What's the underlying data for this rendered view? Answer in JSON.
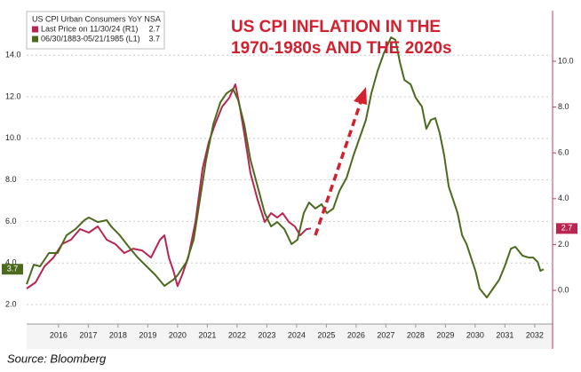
{
  "chart_data": {
    "type": "line",
    "title": [
      "US CPI INFLATION IN THE",
      "1970-1980s AND THE 2020s"
    ],
    "legend_title": "US CPI Urban Consumers YoY NSA",
    "source": "Source: Bloomberg",
    "xlim": [
      2015.43,
      2033.1
    ],
    "xticks": [
      {
        "value": 2016.5,
        "label": "2016"
      },
      {
        "value": 2017.5,
        "label": "2017"
      },
      {
        "value": 2018.5,
        "label": "2018"
      },
      {
        "value": 2019.5,
        "label": "2019"
      },
      {
        "value": 2020.5,
        "label": "2020"
      },
      {
        "value": 2021.5,
        "label": "2021"
      },
      {
        "value": 2022.5,
        "label": "2022"
      },
      {
        "value": 2023.5,
        "label": "2023"
      },
      {
        "value": 2024.5,
        "label": "2024"
      },
      {
        "value": 2025.5,
        "label": "2025"
      },
      {
        "value": 2026.5,
        "label": "2026"
      },
      {
        "value": 2027.5,
        "label": "2027"
      },
      {
        "value": 2028.5,
        "label": "2028"
      },
      {
        "value": 2029.5,
        "label": "2029"
      },
      {
        "value": 2030.5,
        "label": "2030"
      },
      {
        "value": 2031.5,
        "label": "2031"
      },
      {
        "value": 2032.5,
        "label": "2032"
      }
    ],
    "ylim": [
      1.06,
      16.02
    ],
    "yticks": [
      {
        "value": 2,
        "label": "2.0"
      },
      {
        "value": 4,
        "label": "4.0"
      },
      {
        "value": 6,
        "label": "6.0"
      },
      {
        "value": 8,
        "label": "8.0"
      },
      {
        "value": 10,
        "label": "10.0"
      },
      {
        "value": 12,
        "label": "12.0"
      },
      {
        "value": 14,
        "label": "14.0"
      }
    ],
    "y2lim": [
      -1.47,
      12.09
    ],
    "y2ticks": [
      {
        "value": 0,
        "label": "0.0"
      },
      {
        "value": 2,
        "label": "2.0"
      },
      {
        "value": 4,
        "label": "4.0"
      },
      {
        "value": 6,
        "label": "6.0"
      },
      {
        "value": 8,
        "label": "8.0"
      },
      {
        "value": 10,
        "label": "10.0"
      }
    ],
    "grid": true,
    "legend": "upper left",
    "series": [
      {
        "name": "Last Price on 11/30/24 (R1)",
        "color": "#b8254f",
        "axis": "y2",
        "x": [
          2015.43,
          2015.73,
          2016.03,
          2016.33,
          2016.62,
          2016.92,
          2017.22,
          2017.52,
          2017.82,
          2018.12,
          2018.41,
          2018.71,
          2019.01,
          2019.31,
          2019.61,
          2019.91,
          2020.06,
          2020.21,
          2020.36,
          2020.5,
          2020.65,
          2020.86,
          2021.1,
          2021.34,
          2021.55,
          2021.76,
          2022.0,
          2022.24,
          2022.44,
          2022.59,
          2022.74,
          2022.95,
          2023.19,
          2023.43,
          2023.64,
          2023.85,
          2024.03,
          2024.24,
          2024.44,
          2024.62,
          2024.83,
          2024.98
        ],
        "values": [
          0.08,
          0.35,
          1.05,
          1.43,
          2.02,
          2.21,
          2.67,
          2.52,
          2.79,
          2.21,
          2.02,
          1.63,
          1.82,
          1.74,
          1.43,
          2.21,
          2.4,
          1.43,
          0.85,
          0.19,
          0.66,
          1.43,
          2.98,
          5.31,
          6.47,
          7.25,
          8.02,
          8.41,
          8.99,
          8.02,
          6.86,
          5.12,
          3.95,
          2.98,
          3.37,
          3.18,
          3.37,
          2.98,
          2.79,
          2.4,
          2.67,
          2.7
        ]
      },
      {
        "name": "06/30/1883-05/21/1985 (L1)",
        "color": "#4b6a1e",
        "axis": "y",
        "x": [
          2015.43,
          2015.67,
          2015.88,
          2016.18,
          2016.47,
          2016.77,
          2017.07,
          2017.37,
          2017.52,
          2017.82,
          2018.12,
          2018.27,
          2018.56,
          2018.86,
          2019.16,
          2019.46,
          2019.76,
          2020.06,
          2020.36,
          2020.5,
          2020.8,
          2021.04,
          2021.25,
          2021.46,
          2021.7,
          2021.94,
          2022.15,
          2022.36,
          2022.53,
          2022.74,
          2022.95,
          2023.19,
          2023.43,
          2023.64,
          2023.85,
          2024.09,
          2024.33,
          2024.53,
          2024.74,
          2024.92,
          2025.13,
          2025.34,
          2025.52,
          2025.73,
          2025.94,
          2026.18,
          2026.41,
          2026.62,
          2026.83,
          2027.01,
          2027.22,
          2027.43,
          2027.67,
          2027.82,
          2027.97,
          2028.12,
          2028.33,
          2028.5,
          2028.71,
          2028.86,
          2029.01,
          2029.16,
          2029.31,
          2029.46,
          2029.61,
          2029.76,
          2029.91,
          2030.06,
          2030.21,
          2030.36,
          2030.51,
          2030.65,
          2030.89,
          2031.1,
          2031.31,
          2031.49,
          2031.7,
          2031.85,
          2032.09,
          2032.3,
          2032.45,
          2032.6,
          2032.69,
          2032.8
        ],
        "values": [
          2.98,
          3.92,
          3.84,
          4.48,
          4.48,
          5.33,
          5.63,
          6.06,
          6.19,
          5.97,
          6.06,
          5.76,
          5.33,
          4.78,
          4.26,
          3.84,
          3.41,
          2.9,
          3.2,
          3.41,
          4.05,
          5.12,
          7.04,
          8.97,
          10.68,
          11.74,
          12.17,
          12.38,
          11.87,
          10.68,
          8.97,
          7.68,
          6.4,
          5.76,
          5.97,
          5.63,
          4.91,
          5.12,
          6.4,
          6.91,
          6.62,
          6.83,
          6.4,
          6.62,
          7.47,
          8.11,
          9.18,
          10.03,
          10.89,
          12.17,
          13.24,
          14.09,
          14.86,
          14.74,
          13.67,
          12.81,
          12.6,
          11.96,
          11.53,
          10.46,
          10.89,
          10.97,
          10.25,
          9.18,
          7.68,
          7.04,
          6.4,
          5.33,
          4.91,
          4.26,
          3.62,
          2.77,
          2.34,
          2.77,
          3.2,
          3.84,
          4.69,
          4.78,
          4.35,
          4.26,
          4.26,
          4.05,
          3.62,
          3.7
        ]
      }
    ]
  }
}
